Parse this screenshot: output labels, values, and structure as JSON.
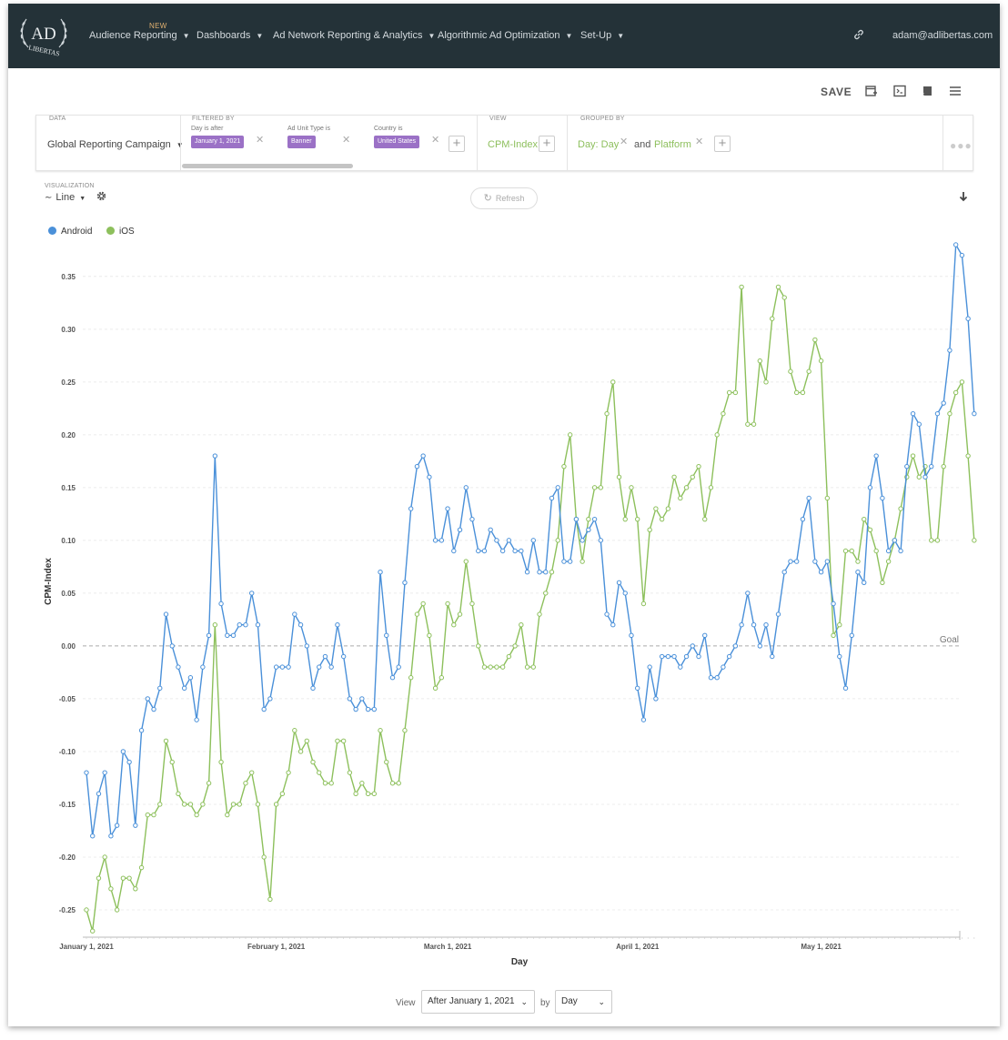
{
  "nav": {
    "logo_text_top": "AD",
    "logo_text_bottom": "LIBERTAS",
    "new_badge": "NEW",
    "items": [
      {
        "label": "Audience Reporting"
      },
      {
        "label": "Dashboards"
      },
      {
        "label": "Ad Network Reporting & Analytics"
      },
      {
        "label": "Algorithmic Ad Optimization"
      },
      {
        "label": "Set-Up"
      }
    ],
    "user": "adam@adlibertas.com",
    "link_icon": "link-icon"
  },
  "toolbar": {
    "save_label": "SAVE",
    "icons": [
      "add-dashboard-icon",
      "embed-icon",
      "book-icon",
      "menu-icon"
    ]
  },
  "filters": {
    "data_label": "DATA",
    "data_value": "Global Reporting Campaign",
    "filtered_by_label": "FILTERED BY",
    "items": [
      {
        "label": "Day is after",
        "value": "January 1, 2021"
      },
      {
        "label": "Ad Unit Type is",
        "value": "Banner"
      },
      {
        "label": "Country is",
        "value": "United States"
      }
    ],
    "view_label": "VIEW",
    "view_value": "CPM-Index",
    "grouped_by_label": "GROUPED BY",
    "group_1": "Day: Day",
    "group_and": "and",
    "group_2": "Platform"
  },
  "visualization": {
    "label": "VISUALIZATION",
    "type": "Line",
    "refresh_label": "Refresh"
  },
  "colors": {
    "android": "#4a90d9",
    "ios": "#8dc05c",
    "nav_bg": "#243238",
    "chip": "#9b71c6"
  },
  "chart_data": {
    "type": "line",
    "xlabel": "Day",
    "ylabel": "CPM-Index",
    "ylim": [
      -0.275,
      0.38
    ],
    "yticks": [
      -0.25,
      -0.2,
      -0.15,
      -0.1,
      -0.05,
      0.0,
      0.05,
      0.1,
      0.15,
      0.2,
      0.25,
      0.3,
      0.35
    ],
    "ytick_labels": [
      "-0.25",
      "-0.20",
      "-0.15",
      "-0.10",
      "-0.05",
      "0.00",
      "0.05",
      "0.10",
      "0.15",
      "0.20",
      "0.25",
      "0.30",
      "0.35"
    ],
    "x_ticks": [
      {
        "label": "January 1, 2021",
        "day": 0
      },
      {
        "label": "February 1, 2021",
        "day": 31
      },
      {
        "label": "March 1, 2021",
        "day": 59
      },
      {
        "label": "April 1, 2021",
        "day": 90
      },
      {
        "label": "May 1, 2021",
        "day": 120
      }
    ],
    "goal": {
      "value": 0,
      "label": "Goal"
    },
    "grid": "horizontal dashed",
    "legend_placement": "top-left",
    "series": [
      {
        "name": "Android",
        "values": [
          -0.12,
          -0.18,
          -0.14,
          -0.12,
          -0.18,
          -0.17,
          -0.1,
          -0.11,
          -0.17,
          -0.08,
          -0.05,
          -0.06,
          -0.04,
          0.03,
          0.0,
          -0.02,
          -0.04,
          -0.03,
          -0.07,
          -0.02,
          0.01,
          0.18,
          0.04,
          0.01,
          0.01,
          0.02,
          0.02,
          0.05,
          0.02,
          -0.06,
          -0.05,
          -0.02,
          -0.02,
          -0.02,
          0.03,
          0.02,
          0.0,
          -0.04,
          -0.02,
          -0.01,
          -0.02,
          0.02,
          -0.01,
          -0.05,
          -0.06,
          -0.05,
          -0.06,
          -0.06,
          0.07,
          0.01,
          -0.03,
          -0.02,
          0.06,
          0.13,
          0.17,
          0.18,
          0.16,
          0.1,
          0.1,
          0.13,
          0.09,
          0.11,
          0.15,
          0.12,
          0.09,
          0.09,
          0.11,
          0.1,
          0.09,
          0.1,
          0.09,
          0.09,
          0.07,
          0.1,
          0.07,
          0.07,
          0.14,
          0.15,
          0.08,
          0.08,
          0.12,
          0.1,
          0.11,
          0.12,
          0.1,
          0.03,
          0.02,
          0.06,
          0.05,
          0.01,
          -0.04,
          -0.07,
          -0.02,
          -0.05,
          -0.01,
          -0.01,
          -0.01,
          -0.02,
          -0.01,
          0.0,
          -0.01,
          0.01,
          -0.03,
          -0.03,
          -0.02,
          -0.01,
          0.0,
          0.02,
          0.05,
          0.02,
          0.0,
          0.02,
          -0.01,
          0.03,
          0.07,
          0.08,
          0.08,
          0.12,
          0.14,
          0.08,
          0.07,
          0.08,
          0.04,
          -0.01,
          -0.04,
          0.01,
          0.07,
          0.06,
          0.15,
          0.18,
          0.14,
          0.09,
          0.1,
          0.09,
          0.17,
          0.22,
          0.21,
          0.16,
          0.17,
          0.22,
          0.23,
          0.28,
          0.38,
          0.37,
          0.31,
          0.22
        ]
      },
      {
        "name": "iOS",
        "values": [
          -0.25,
          -0.27,
          -0.22,
          -0.2,
          -0.23,
          -0.25,
          -0.22,
          -0.22,
          -0.23,
          -0.21,
          -0.16,
          -0.16,
          -0.15,
          -0.09,
          -0.11,
          -0.14,
          -0.15,
          -0.15,
          -0.16,
          -0.15,
          -0.13,
          0.02,
          -0.11,
          -0.16,
          -0.15,
          -0.15,
          -0.13,
          -0.12,
          -0.15,
          -0.2,
          -0.24,
          -0.15,
          -0.14,
          -0.12,
          -0.08,
          -0.1,
          -0.09,
          -0.11,
          -0.12,
          -0.13,
          -0.13,
          -0.09,
          -0.09,
          -0.12,
          -0.14,
          -0.13,
          -0.14,
          -0.14,
          -0.08,
          -0.11,
          -0.13,
          -0.13,
          -0.08,
          -0.03,
          0.03,
          0.04,
          0.01,
          -0.04,
          -0.03,
          0.04,
          0.02,
          0.03,
          0.08,
          0.04,
          0.0,
          -0.02,
          -0.02,
          -0.02,
          -0.02,
          -0.01,
          0.0,
          0.02,
          -0.02,
          -0.02,
          0.03,
          0.05,
          0.07,
          0.1,
          0.17,
          0.2,
          0.12,
          0.08,
          0.12,
          0.15,
          0.15,
          0.22,
          0.25,
          0.16,
          0.12,
          0.15,
          0.12,
          0.04,
          0.11,
          0.13,
          0.12,
          0.13,
          0.16,
          0.14,
          0.15,
          0.16,
          0.17,
          0.12,
          0.15,
          0.2,
          0.22,
          0.24,
          0.24,
          0.34,
          0.21,
          0.21,
          0.27,
          0.25,
          0.31,
          0.34,
          0.33,
          0.26,
          0.24,
          0.24,
          0.26,
          0.29,
          0.27,
          0.14,
          0.01,
          0.02,
          0.09,
          0.09,
          0.08,
          0.12,
          0.11,
          0.09,
          0.06,
          0.08,
          0.1,
          0.13,
          0.16,
          0.18,
          0.16,
          0.17,
          0.1,
          0.1,
          0.17,
          0.22,
          0.24,
          0.25,
          0.18,
          0.1
        ]
      }
    ]
  },
  "footer": {
    "view_label": "View",
    "range_value": "After January 1, 2021",
    "by_label": "by",
    "granularity_value": "Day"
  }
}
